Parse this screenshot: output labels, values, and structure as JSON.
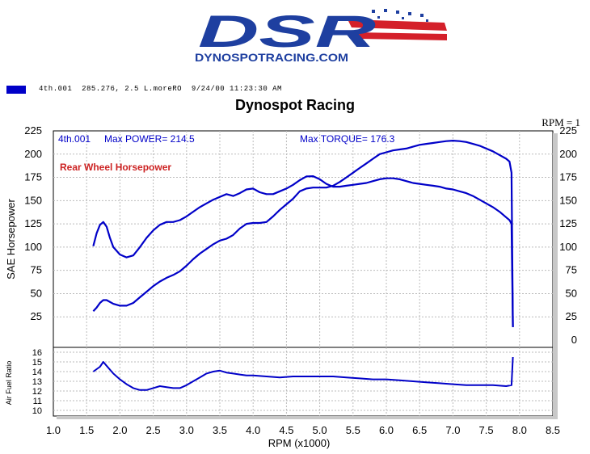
{
  "logo": {
    "wordmark": "DSR",
    "website": "DYNOSPOTRACING.COM",
    "colors": {
      "blue": "#1e3fa0",
      "red": "#d4202a"
    }
  },
  "legend": {
    "swatch_color": "#0000c8",
    "text": "4th.001  285.276, 2.5 L.moreRO  9/24/00 11:23:30 AM"
  },
  "header": {
    "title": "Dynospot Racing",
    "rpm_indicator": "RPM = 1"
  },
  "chart_data": [
    {
      "type": "line",
      "panel": "main",
      "ylabel": "SAE Horsepower",
      "ylim": [
        0,
        225
      ],
      "yticks": [
        0,
        25,
        50,
        75,
        100,
        125,
        150,
        175,
        200,
        225
      ],
      "yticks_left": [
        25,
        50,
        75,
        100,
        125,
        150,
        175,
        200,
        225
      ],
      "xlim": [
        1.0,
        8.5
      ],
      "grid": true,
      "annotations": {
        "run": "4th.001",
        "max_power": "Max POWER= 214.5",
        "max_torque": "Max TORQUE= 176.3",
        "label": "Rear Wheel Horsepower",
        "label_color": "#cc2222"
      },
      "series": [
        {
          "role": "power",
          "color": "#0000c8",
          "points": [
            [
              1.6,
              31
            ],
            [
              1.65,
              35
            ],
            [
              1.7,
              40
            ],
            [
              1.75,
              43
            ],
            [
              1.8,
              43
            ],
            [
              1.9,
              39
            ],
            [
              2.0,
              37
            ],
            [
              2.1,
              37
            ],
            [
              2.2,
              40
            ],
            [
              2.3,
              46
            ],
            [
              2.4,
              52
            ],
            [
              2.5,
              58
            ],
            [
              2.6,
              63
            ],
            [
              2.7,
              67
            ],
            [
              2.8,
              70
            ],
            [
              2.9,
              74
            ],
            [
              3.0,
              80
            ],
            [
              3.1,
              87
            ],
            [
              3.2,
              93
            ],
            [
              3.3,
              98
            ],
            [
              3.4,
              103
            ],
            [
              3.5,
              107
            ],
            [
              3.6,
              109
            ],
            [
              3.7,
              113
            ],
            [
              3.8,
              120
            ],
            [
              3.9,
              125
            ],
            [
              4.0,
              126
            ],
            [
              4.1,
              126
            ],
            [
              4.2,
              127
            ],
            [
              4.3,
              133
            ],
            [
              4.4,
              140
            ],
            [
              4.5,
              146
            ],
            [
              4.6,
              152
            ],
            [
              4.7,
              160
            ],
            [
              4.8,
              163
            ],
            [
              4.9,
              164
            ],
            [
              5.0,
              164
            ],
            [
              5.1,
              164
            ],
            [
              5.2,
              166
            ],
            [
              5.3,
              170
            ],
            [
              5.4,
              175
            ],
            [
              5.5,
              180
            ],
            [
              5.6,
              185
            ],
            [
              5.7,
              190
            ],
            [
              5.8,
              195
            ],
            [
              5.9,
              200
            ],
            [
              6.0,
              202
            ],
            [
              6.1,
              204
            ],
            [
              6.2,
              205
            ],
            [
              6.3,
              206
            ],
            [
              6.4,
              208
            ],
            [
              6.5,
              210
            ],
            [
              6.6,
              211
            ],
            [
              6.7,
              212
            ],
            [
              6.8,
              213
            ],
            [
              6.9,
              214
            ],
            [
              7.0,
              214.5
            ],
            [
              7.1,
              214
            ],
            [
              7.2,
              213
            ],
            [
              7.3,
              211
            ],
            [
              7.4,
              209
            ],
            [
              7.5,
              206
            ],
            [
              7.6,
              203
            ],
            [
              7.7,
              199
            ],
            [
              7.8,
              195
            ],
            [
              7.85,
              192
            ],
            [
              7.88,
              180
            ],
            [
              7.9,
              14
            ]
          ]
        },
        {
          "role": "torque",
          "color": "#0000c8",
          "points": [
            [
              1.6,
              101
            ],
            [
              1.65,
              115
            ],
            [
              1.7,
              124
            ],
            [
              1.75,
              127
            ],
            [
              1.8,
              122
            ],
            [
              1.85,
              110
            ],
            [
              1.9,
              100
            ],
            [
              2.0,
              92
            ],
            [
              2.1,
              89
            ],
            [
              2.2,
              91
            ],
            [
              2.3,
              100
            ],
            [
              2.4,
              110
            ],
            [
              2.5,
              118
            ],
            [
              2.6,
              124
            ],
            [
              2.7,
              127
            ],
            [
              2.8,
              127
            ],
            [
              2.9,
              129
            ],
            [
              3.0,
              133
            ],
            [
              3.1,
              138
            ],
            [
              3.2,
              143
            ],
            [
              3.3,
              147
            ],
            [
              3.4,
              151
            ],
            [
              3.5,
              154
            ],
            [
              3.6,
              157
            ],
            [
              3.7,
              155
            ],
            [
              3.8,
              158
            ],
            [
              3.9,
              162
            ],
            [
              4.0,
              163
            ],
            [
              4.1,
              159
            ],
            [
              4.2,
              157
            ],
            [
              4.3,
              157
            ],
            [
              4.4,
              160
            ],
            [
              4.5,
              163
            ],
            [
              4.6,
              167
            ],
            [
              4.7,
              172
            ],
            [
              4.8,
              176
            ],
            [
              4.9,
              176.3
            ],
            [
              5.0,
              173
            ],
            [
              5.1,
              168
            ],
            [
              5.2,
              165
            ],
            [
              5.3,
              165
            ],
            [
              5.4,
              166
            ],
            [
              5.5,
              167
            ],
            [
              5.6,
              168
            ],
            [
              5.7,
              169
            ],
            [
              5.8,
              171
            ],
            [
              5.9,
              173
            ],
            [
              6.0,
              174
            ],
            [
              6.1,
              174
            ],
            [
              6.2,
              173
            ],
            [
              6.3,
              171
            ],
            [
              6.4,
              169
            ],
            [
              6.5,
              168
            ],
            [
              6.6,
              167
            ],
            [
              6.7,
              166
            ],
            [
              6.8,
              165
            ],
            [
              6.9,
              163
            ],
            [
              7.0,
              162
            ],
            [
              7.1,
              160
            ],
            [
              7.2,
              158
            ],
            [
              7.3,
              155
            ],
            [
              7.4,
              151
            ],
            [
              7.5,
              147
            ],
            [
              7.6,
              143
            ],
            [
              7.7,
              138
            ],
            [
              7.8,
              132
            ],
            [
              7.85,
              129
            ],
            [
              7.88,
              125
            ],
            [
              7.9,
              14
            ]
          ]
        }
      ]
    },
    {
      "type": "line",
      "panel": "afr",
      "ylabel": "Air Fuel Ratio",
      "ylim": [
        10,
        16
      ],
      "yticks": [
        10,
        11,
        12,
        13,
        14,
        15,
        16
      ],
      "xlim": [
        1.0,
        8.5
      ],
      "xticks": [
        1.0,
        1.5,
        2.0,
        2.5,
        3.0,
        3.5,
        4.0,
        4.5,
        5.0,
        5.5,
        6.0,
        6.5,
        7.0,
        7.5,
        8.0,
        8.5
      ],
      "xticklabels": [
        "1.0",
        "1.5",
        "2.0",
        "2.5",
        "3.0",
        "3.5",
        "4.0",
        "4.5",
        "5.0",
        "5.5",
        "6.0",
        "6.5",
        "7.0",
        "7.5",
        "8.0",
        "8.5"
      ],
      "xlabel": "RPM (x1000)",
      "grid": true,
      "series": [
        {
          "role": "afr",
          "color": "#0000c8",
          "points": [
            [
              1.6,
              14.0
            ],
            [
              1.7,
              14.5
            ],
            [
              1.75,
              15.0
            ],
            [
              1.8,
              14.6
            ],
            [
              1.9,
              13.8
            ],
            [
              2.0,
              13.2
            ],
            [
              2.1,
              12.7
            ],
            [
              2.2,
              12.3
            ],
            [
              2.3,
              12.1
            ],
            [
              2.4,
              12.1
            ],
            [
              2.5,
              12.3
            ],
            [
              2.6,
              12.5
            ],
            [
              2.7,
              12.4
            ],
            [
              2.8,
              12.3
            ],
            [
              2.9,
              12.3
            ],
            [
              3.0,
              12.6
            ],
            [
              3.1,
              13.0
            ],
            [
              3.2,
              13.4
            ],
            [
              3.3,
              13.8
            ],
            [
              3.4,
              14.0
            ],
            [
              3.5,
              14.1
            ],
            [
              3.6,
              13.9
            ],
            [
              3.7,
              13.8
            ],
            [
              3.8,
              13.7
            ],
            [
              3.9,
              13.6
            ],
            [
              4.0,
              13.6
            ],
            [
              4.2,
              13.5
            ],
            [
              4.4,
              13.4
            ],
            [
              4.6,
              13.5
            ],
            [
              4.8,
              13.5
            ],
            [
              5.0,
              13.5
            ],
            [
              5.2,
              13.5
            ],
            [
              5.4,
              13.4
            ],
            [
              5.6,
              13.3
            ],
            [
              5.8,
              13.2
            ],
            [
              6.0,
              13.2
            ],
            [
              6.2,
              13.1
            ],
            [
              6.4,
              13.0
            ],
            [
              6.6,
              12.9
            ],
            [
              6.8,
              12.8
            ],
            [
              7.0,
              12.7
            ],
            [
              7.2,
              12.6
            ],
            [
              7.4,
              12.6
            ],
            [
              7.6,
              12.6
            ],
            [
              7.8,
              12.5
            ],
            [
              7.88,
              12.6
            ],
            [
              7.9,
              15.5
            ]
          ]
        }
      ]
    }
  ]
}
